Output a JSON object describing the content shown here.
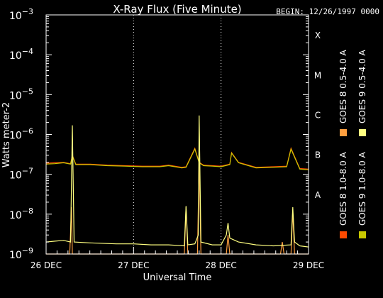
{
  "chart_data": {
    "type": "line",
    "title": "X-Ray Flux (Five Minute)",
    "begin_label": "BEGIN: 12/26/1997 0000",
    "xlabel": "Universal Time",
    "ylabel": "Watts meter-2",
    "y_scale": "log",
    "ylim": [
      1e-09,
      0.001
    ],
    "y_ticks": [
      {
        "value": 1e-09,
        "base": "10",
        "exp": "−9"
      },
      {
        "value": 1e-08,
        "base": "10",
        "exp": "−8"
      },
      {
        "value": 1e-07,
        "base": "10",
        "exp": "−7"
      },
      {
        "value": 1e-06,
        "base": "10",
        "exp": "−6"
      },
      {
        "value": 1e-05,
        "base": "10",
        "exp": "−5"
      },
      {
        "value": 0.0001,
        "base": "10",
        "exp": "−4"
      },
      {
        "value": 0.001,
        "base": "10",
        "exp": "−3"
      }
    ],
    "x_ticks": [
      "26 DEC",
      "27 DEC",
      "28 DEC",
      "29 DEC"
    ],
    "xlim_days": [
      0,
      3
    ],
    "x_unit": "days from 26 DEC 0000 UT",
    "flare_classes": [
      {
        "label": "A",
        "value": 1e-08
      },
      {
        "label": "B",
        "value": 1e-07
      },
      {
        "label": "C",
        "value": 1e-06
      },
      {
        "label": "M",
        "value": 1e-05
      },
      {
        "label": "X",
        "value": 0.0001
      }
    ],
    "grid": "dotted vertical lines at day boundaries",
    "legend_placement": "right, rotated",
    "series": [
      {
        "name": "GOES 8 1.0-8.0 A",
        "color": "#ff4a00",
        "points": [
          [
            0,
            1.9e-07
          ],
          [
            0.1,
            1.95e-07
          ],
          [
            0.2,
            2e-07
          ],
          [
            0.28,
            1.85e-07
          ],
          [
            0.3,
            3e-07
          ],
          [
            0.34,
            1.8e-07
          ],
          [
            0.5,
            1.8e-07
          ],
          [
            0.7,
            1.7e-07
          ],
          [
            0.9,
            1.65e-07
          ],
          [
            1.1,
            1.6e-07
          ],
          [
            1.3,
            1.6e-07
          ],
          [
            1.4,
            1.7e-07
          ],
          [
            1.55,
            1.5e-07
          ],
          [
            1.6,
            1.55e-07
          ],
          [
            1.7,
            4.5e-07
          ],
          [
            1.75,
            2e-07
          ],
          [
            1.8,
            1.7e-07
          ],
          [
            1.9,
            1.65e-07
          ],
          [
            2.0,
            1.6e-07
          ],
          [
            2.1,
            1.8e-07
          ],
          [
            2.12,
            3.5e-07
          ],
          [
            2.2,
            2e-07
          ],
          [
            2.4,
            1.5e-07
          ],
          [
            2.6,
            1.55e-07
          ],
          [
            2.75,
            1.6e-07
          ],
          [
            2.8,
            4.5e-07
          ],
          [
            2.85,
            2.5e-07
          ],
          [
            2.9,
            1.4e-07
          ],
          [
            3.0,
            1.35e-07
          ]
        ]
      },
      {
        "name": "GOES 9 1.0-8.0 A",
        "color": "#c8c800",
        "points": [
          [
            0,
            1.8e-07
          ],
          [
            0.1,
            1.85e-07
          ],
          [
            0.2,
            1.95e-07
          ],
          [
            0.28,
            1.8e-07
          ],
          [
            0.3,
            2.9e-07
          ],
          [
            0.34,
            1.75e-07
          ],
          [
            0.5,
            1.75e-07
          ],
          [
            0.7,
            1.65e-07
          ],
          [
            0.9,
            1.6e-07
          ],
          [
            1.1,
            1.55e-07
          ],
          [
            1.3,
            1.55e-07
          ],
          [
            1.4,
            1.65e-07
          ],
          [
            1.55,
            1.45e-07
          ],
          [
            1.6,
            1.5e-07
          ],
          [
            1.7,
            4.3e-07
          ],
          [
            1.75,
            1.95e-07
          ],
          [
            1.8,
            1.65e-07
          ],
          [
            1.9,
            1.6e-07
          ],
          [
            2.0,
            1.55e-07
          ],
          [
            2.1,
            1.75e-07
          ],
          [
            2.12,
            3.4e-07
          ],
          [
            2.2,
            1.95e-07
          ],
          [
            2.4,
            1.45e-07
          ],
          [
            2.6,
            1.5e-07
          ],
          [
            2.75,
            1.55e-07
          ],
          [
            2.8,
            4.3e-07
          ],
          [
            2.85,
            2.4e-07
          ],
          [
            2.9,
            1.35e-07
          ],
          [
            3.0,
            1.3e-07
          ]
        ]
      },
      {
        "name": "GOES 8 0.5-4.0 A",
        "color": "#ffa040",
        "points": [
          [
            0,
            1e-09
          ],
          [
            0.27,
            1e-09
          ],
          [
            0.29,
            1.5e-08
          ],
          [
            0.3,
            1e-09
          ],
          [
            1.2,
            1e-09
          ],
          [
            1.58,
            1e-09
          ],
          [
            1.6,
            1.5e-08
          ],
          [
            1.62,
            1e-09
          ],
          [
            1.73,
            1e-09
          ],
          [
            1.75,
            2.5e-07
          ],
          [
            1.77,
            1e-09
          ],
          [
            2.0,
            1e-09
          ],
          [
            2.06,
            1e-09
          ],
          [
            2.08,
            3e-09
          ],
          [
            2.1,
            1e-09
          ],
          [
            2.6,
            1e-09
          ],
          [
            2.68,
            1e-09
          ],
          [
            2.7,
            2e-09
          ],
          [
            2.72,
            1e-09
          ],
          [
            2.8,
            1e-09
          ],
          [
            2.82,
            1.2e-08
          ],
          [
            2.84,
            1e-09
          ],
          [
            3.0,
            1e-09
          ]
        ]
      },
      {
        "name": "GOES 9 0.5-4.0 A",
        "color": "#ffff80",
        "points": [
          [
            0,
            2e-09
          ],
          [
            0.1,
            2.1e-09
          ],
          [
            0.2,
            2.2e-09
          ],
          [
            0.28,
            2e-09
          ],
          [
            0.3,
            1.7e-06
          ],
          [
            0.32,
            2e-09
          ],
          [
            0.5,
            1.9e-09
          ],
          [
            0.8,
            1.8e-09
          ],
          [
            1.0,
            1.8e-09
          ],
          [
            1.2,
            1.7e-09
          ],
          [
            1.4,
            1.7e-09
          ],
          [
            1.58,
            1.6e-09
          ],
          [
            1.6,
            1.6e-08
          ],
          [
            1.62,
            1.7e-09
          ],
          [
            1.7,
            1.8e-09
          ],
          [
            1.74,
            3e-09
          ],
          [
            1.75,
            3e-06
          ],
          [
            1.77,
            2e-09
          ],
          [
            1.9,
            1.7e-09
          ],
          [
            2.0,
            1.7e-09
          ],
          [
            2.06,
            3e-09
          ],
          [
            2.08,
            6e-09
          ],
          [
            2.1,
            2.5e-09
          ],
          [
            2.2,
            2e-09
          ],
          [
            2.4,
            1.7e-09
          ],
          [
            2.6,
            1.6e-09
          ],
          [
            2.8,
            1.7e-09
          ],
          [
            2.82,
            1.5e-08
          ],
          [
            2.84,
            2e-09
          ],
          [
            2.9,
            1.6e-09
          ],
          [
            3.0,
            1.5e-09
          ]
        ]
      }
    ]
  }
}
